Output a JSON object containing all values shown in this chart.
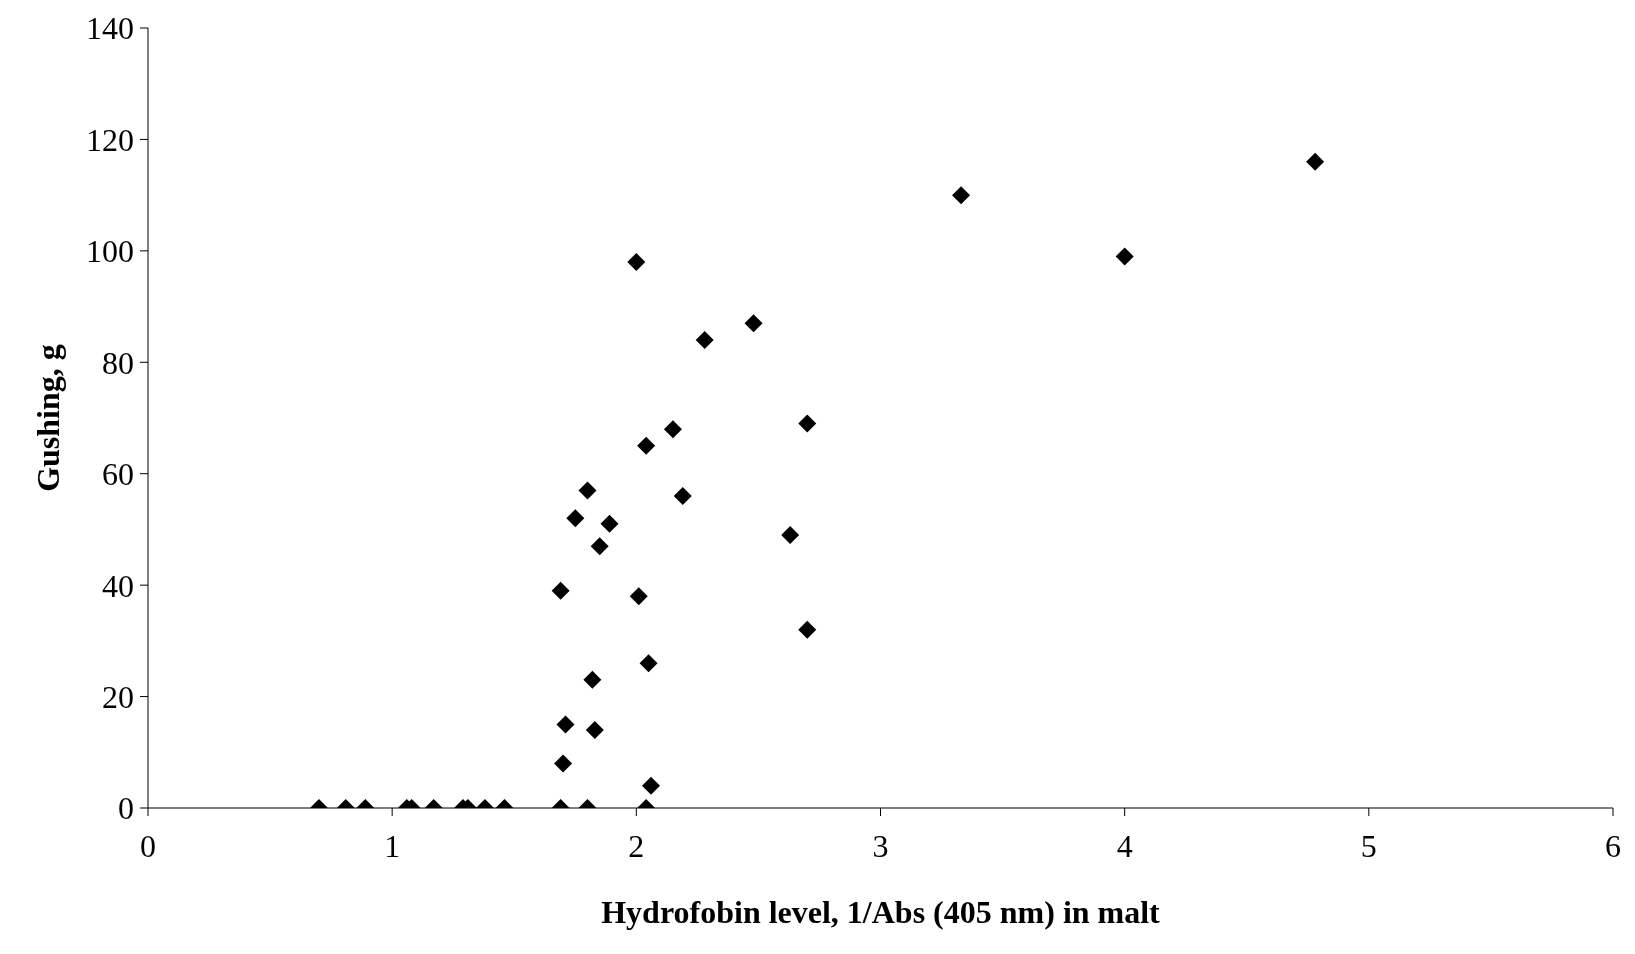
{
  "chart_data": {
    "type": "scatter",
    "xlabel": "Hydrofobin level, 1/Abs (405 nm) in malt",
    "ylabel": "Gushing, g",
    "xlim": [
      0,
      6
    ],
    "xticks": [
      0,
      1,
      2,
      3,
      4,
      5,
      6
    ],
    "ylim": [
      0,
      140
    ],
    "yticks": [
      0,
      20,
      40,
      60,
      80,
      100,
      120,
      140
    ],
    "marker": "diamond",
    "x": [
      0.7,
      0.81,
      0.89,
      1.06,
      1.08,
      1.17,
      1.29,
      1.31,
      1.38,
      1.46,
      1.69,
      1.8,
      2.04,
      1.69,
      1.71,
      1.7,
      1.75,
      1.8,
      1.85,
      1.89,
      1.82,
      1.83,
      2.0,
      2.01,
      2.04,
      2.05,
      2.06,
      2.15,
      2.19,
      2.28,
      2.48,
      2.63,
      2.7,
      2.7,
      3.33,
      4.0,
      4.78
    ],
    "series": [
      {
        "color": "#000000",
        "values": [
          0,
          0,
          0,
          0,
          0,
          0,
          0,
          0,
          0,
          0,
          0,
          0,
          0,
          39,
          15,
          8,
          52,
          57,
          47,
          51,
          23,
          14,
          98,
          38,
          65,
          26,
          4,
          68,
          56,
          84,
          87,
          49,
          69,
          32,
          110,
          99,
          116
        ]
      }
    ]
  }
}
